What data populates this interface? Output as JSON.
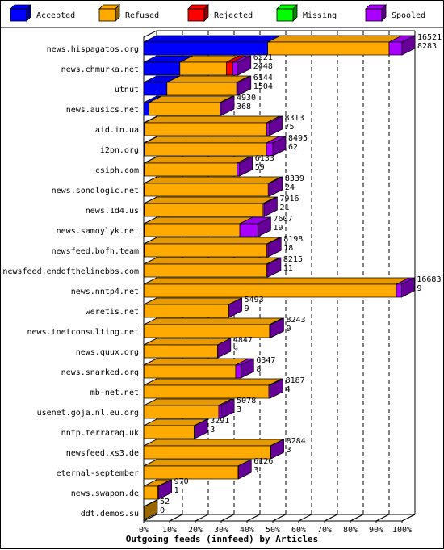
{
  "chart_data": {
    "type": "bar",
    "orientation": "horizontal",
    "stacked": true,
    "style": "3d",
    "title": "",
    "xlabel": "Outgoing feeds (innfeed) by Articles",
    "ylabel": "",
    "xlim": [
      0,
      100
    ],
    "x_ticks": [
      "0%",
      "10%",
      "20%",
      "30%",
      "40%",
      "50%",
      "60%",
      "70%",
      "80%",
      "90%",
      "100%"
    ],
    "grid": true,
    "legend_position": "top",
    "series": [
      {
        "name": "Accepted",
        "color": "#0000ff"
      },
      {
        "name": "Refused",
        "color": "#ffaa00"
      },
      {
        "name": "Rejected",
        "color": "#ff0000"
      },
      {
        "name": "Missing",
        "color": "#00ff00"
      },
      {
        "name": "Spooled",
        "color": "#aa00ff"
      }
    ],
    "feeds": [
      {
        "name": "news.hispagatos.org",
        "total": "16521",
        "accepted": "8283",
        "pct": {
          "Accepted": 48.0,
          "Refused": 47.0,
          "Rejected": 0,
          "Missing": 0,
          "Spooled": 5.0
        }
      },
      {
        "name": "news.chmurka.net",
        "total": "6221",
        "accepted": "2448",
        "pct": {
          "Accepted": 14.0,
          "Refused": 18.0,
          "Rejected": 2.5,
          "Missing": 0,
          "Spooled": 2.0
        }
      },
      {
        "name": "utnut",
        "total": "6144",
        "accepted": "1504",
        "pct": {
          "Accepted": 9.0,
          "Refused": 27.0,
          "Rejected": 0,
          "Missing": 0,
          "Spooled": 0.5
        }
      },
      {
        "name": "news.ausics.net",
        "total": "4930",
        "accepted": "368",
        "pct": {
          "Accepted": 2.0,
          "Refused": 27.5,
          "Rejected": 0,
          "Missing": 0,
          "Spooled": 0.5
        }
      },
      {
        "name": "aid.in.ua",
        "total": "8313",
        "accepted": "75",
        "pct": {
          "Accepted": 0.4,
          "Refused": 47.2,
          "Rejected": 0,
          "Missing": 0,
          "Spooled": 1.0
        }
      },
      {
        "name": "i2pn.org",
        "total": "8495",
        "accepted": "62",
        "pct": {
          "Accepted": 0.4,
          "Refused": 47.1,
          "Rejected": 0,
          "Missing": 0,
          "Spooled": 2.5
        }
      },
      {
        "name": "csiph.com",
        "total": "6133",
        "accepted": "59",
        "pct": {
          "Accepted": 0.3,
          "Refused": 35.8,
          "Rejected": 0,
          "Missing": 0,
          "Spooled": 1.0
        }
      },
      {
        "name": "news.sonologic.net",
        "total": "8339",
        "accepted": "24",
        "pct": {
          "Accepted": 0.2,
          "Refused": 48.0,
          "Rejected": 0,
          "Missing": 0,
          "Spooled": 0.5
        }
      },
      {
        "name": "news.1d4.us",
        "total": "7916",
        "accepted": "21",
        "pct": {
          "Accepted": 0.2,
          "Refused": 46.0,
          "Rejected": 0,
          "Missing": 0,
          "Spooled": 0.5
        }
      },
      {
        "name": "news.samoylyk.net",
        "total": "7607",
        "accepted": "19",
        "pct": {
          "Accepted": 0.2,
          "Refused": 37.0,
          "Rejected": 0,
          "Missing": 0,
          "Spooled": 7.0
        }
      },
      {
        "name": "newsfeed.bofh.team",
        "total": "8198",
        "accepted": "18",
        "pct": {
          "Accepted": 0.2,
          "Refused": 47.5,
          "Rejected": 0,
          "Missing": 0,
          "Spooled": 0.5
        }
      },
      {
        "name": "newsfeed.endofthelinebbs.com",
        "total": "8215",
        "accepted": "11",
        "pct": {
          "Accepted": 0.1,
          "Refused": 47.5,
          "Rejected": 0,
          "Missing": 0,
          "Spooled": 0.5
        }
      },
      {
        "name": "news.nntp4.net",
        "total": "16683",
        "accepted": "9",
        "pct": {
          "Accepted": 0.1,
          "Refused": 97.7,
          "Rejected": 0,
          "Missing": 0,
          "Spooled": 2.0
        }
      },
      {
        "name": "weretis.net",
        "total": "5493",
        "accepted": "9",
        "pct": {
          "Accepted": 0.1,
          "Refused": 32.8,
          "Rejected": 0,
          "Missing": 0,
          "Spooled": 0.1
        }
      },
      {
        "name": "news.tnetconsulting.net",
        "total": "8243",
        "accepted": "9",
        "pct": {
          "Accepted": 0.1,
          "Refused": 48.6,
          "Rejected": 0,
          "Missing": 0,
          "Spooled": 0.5
        }
      },
      {
        "name": "news.quux.org",
        "total": "4847",
        "accepted": "9",
        "pct": {
          "Accepted": 0.1,
          "Refused": 28.5,
          "Rejected": 0,
          "Missing": 0,
          "Spooled": 0.1
        }
      },
      {
        "name": "news.snarked.org",
        "total": "6347",
        "accepted": "8",
        "pct": {
          "Accepted": 0.1,
          "Refused": 35.5,
          "Rejected": 0,
          "Missing": 0,
          "Spooled": 2.0
        }
      },
      {
        "name": "mb-net.net",
        "total": "8187",
        "accepted": "4",
        "pct": {
          "Accepted": 0.05,
          "Refused": 48.4,
          "Rejected": 0,
          "Missing": 0,
          "Spooled": 0.5
        }
      },
      {
        "name": "usenet.goja.nl.eu.org",
        "total": "5078",
        "accepted": "3",
        "pct": {
          "Accepted": 0.05,
          "Refused": 29.0,
          "Rejected": 0,
          "Missing": 0,
          "Spooled": 1.0
        }
      },
      {
        "name": "nntp.terraraq.uk",
        "total": "3291",
        "accepted": "3",
        "pct": {
          "Accepted": 0.05,
          "Refused": 19.5,
          "Rejected": 0,
          "Missing": 0,
          "Spooled": 0.2
        }
      },
      {
        "name": "newsfeed.xs3.de",
        "total": "8284",
        "accepted": "3",
        "pct": {
          "Accepted": 0.05,
          "Refused": 49.0,
          "Rejected": 0,
          "Missing": 0,
          "Spooled": 0.2
        }
      },
      {
        "name": "eternal-september",
        "total": "6126",
        "accepted": "3",
        "pct": {
          "Accepted": 0.05,
          "Refused": 36.5,
          "Rejected": 0,
          "Missing": 0,
          "Spooled": 0.1
        }
      },
      {
        "name": "news.swapon.de",
        "total": "970",
        "accepted": "1",
        "pct": {
          "Accepted": 0.02,
          "Refused": 5.5,
          "Rejected": 0,
          "Missing": 0,
          "Spooled": 0.3
        }
      },
      {
        "name": "ddt.demos.su",
        "total": "52",
        "accepted": "0",
        "pct": {
          "Accepted": 0,
          "Refused": 0.3,
          "Rejected": 0,
          "Missing": 0,
          "Spooled": 0
        }
      }
    ]
  }
}
